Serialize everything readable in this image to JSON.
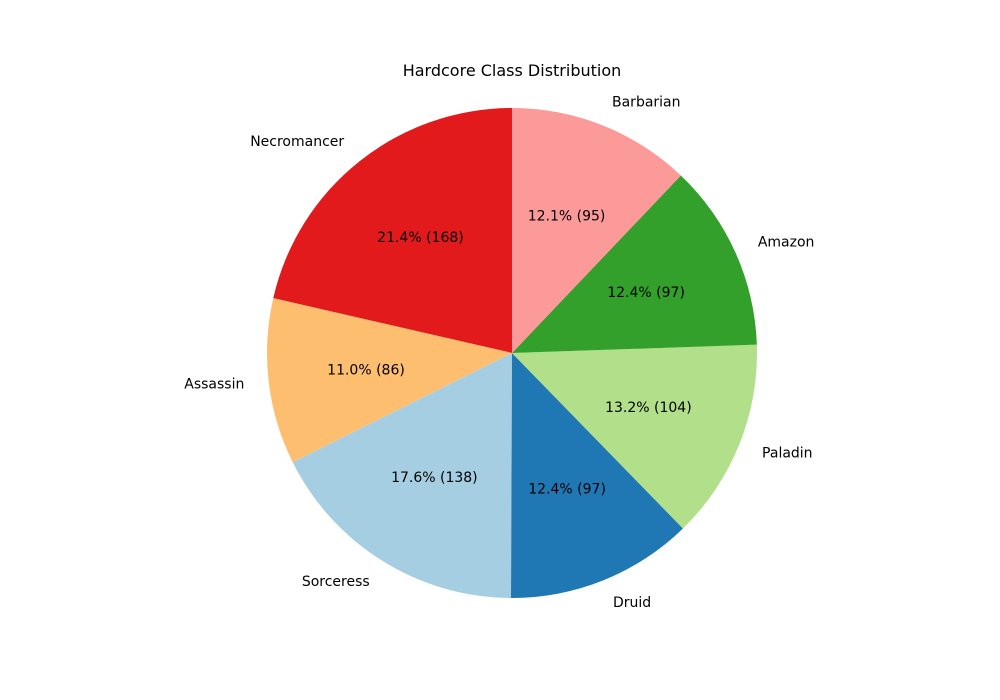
{
  "chart_data": {
    "type": "pie",
    "title": "Hardcore Class Distribution",
    "start_angle_deg": 90,
    "direction": "counterclockwise",
    "slices": [
      {
        "label": "Necromancer",
        "value": 168,
        "percent_text": "21.4% (168)",
        "color": "#e31a1c"
      },
      {
        "label": "Assassin",
        "value": 86,
        "percent_text": "11.0% (86)",
        "color": "#fdbf6f"
      },
      {
        "label": "Sorceress",
        "value": 138,
        "percent_text": "17.6% (138)",
        "color": "#a6cee3"
      },
      {
        "label": "Druid",
        "value": 97,
        "percent_text": "12.4% (97)",
        "color": "#1f78b4"
      },
      {
        "label": "Paladin",
        "value": 104,
        "percent_text": "13.2% (104)",
        "color": "#b2df8a"
      },
      {
        "label": "Amazon",
        "value": 97,
        "percent_text": "12.4% (97)",
        "color": "#33a02c"
      },
      {
        "label": "Barbarian",
        "value": 95,
        "percent_text": "12.1% (95)",
        "color": "#fb9a99"
      }
    ]
  }
}
